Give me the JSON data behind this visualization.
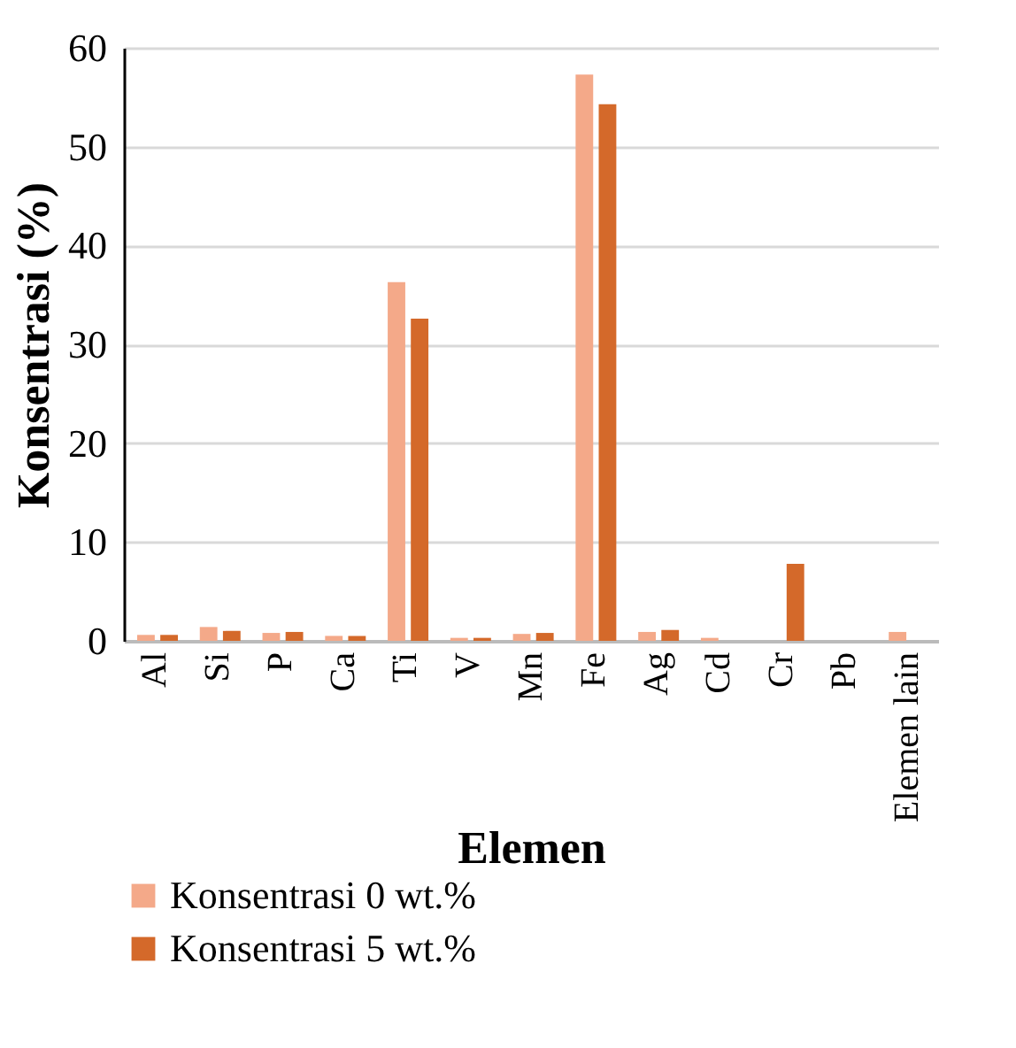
{
  "chart_data": {
    "type": "bar",
    "xlabel": "Elemen",
    "ylabel": "Konsentrasi (%)",
    "categories": [
      "Al",
      "Si",
      "P",
      "Ca",
      "Ti",
      "V",
      "Mn",
      "Fe",
      "Ag",
      "Cd",
      "Cr",
      "Pb",
      "Elemen lain"
    ],
    "series": [
      {
        "name": "Konsentrasi 0 wt.%",
        "color": "#f4a989",
        "values": [
          0.6,
          1.4,
          0.8,
          0.5,
          36.3,
          0.3,
          0.7,
          57.3,
          0.9,
          0.3,
          0,
          0,
          0.9
        ]
      },
      {
        "name": "Konsentrasi 5 wt.%",
        "color": "#d4692a",
        "values": [
          0.6,
          1.0,
          0.9,
          0.5,
          32.6,
          0.3,
          0.8,
          54.3,
          1.1,
          0,
          7.8,
          0,
          0
        ]
      }
    ],
    "ylim": [
      0,
      60
    ],
    "yticks": [
      0,
      10,
      20,
      30,
      40,
      50,
      60
    ],
    "grid": "y",
    "legend": "bottom"
  }
}
